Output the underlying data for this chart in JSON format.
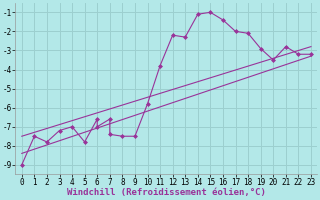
{
  "background_color": "#b3e8e8",
  "grid_color": "#9ccfcf",
  "line_color": "#993399",
  "marker_color": "#993399",
  "xlabel": "Windchill (Refroidissement éolien,°C)",
  "xlim": [
    -0.5,
    23.5
  ],
  "ylim": [
    -9.5,
    -0.5
  ],
  "yticks": [
    -9,
    -8,
    -7,
    -6,
    -5,
    -4,
    -3,
    -2,
    -1
  ],
  "xticks": [
    0,
    1,
    2,
    3,
    4,
    5,
    6,
    7,
    8,
    9,
    10,
    11,
    12,
    13,
    14,
    15,
    16,
    17,
    18,
    19,
    20,
    21,
    22,
    23
  ],
  "line1_x": [
    0,
    1,
    2,
    3,
    4,
    5,
    6,
    6,
    7,
    7,
    8,
    9,
    10,
    11,
    12,
    13,
    14,
    15,
    16,
    17,
    18,
    19,
    20,
    21,
    22,
    23
  ],
  "line1_y": [
    -9.0,
    -7.5,
    -7.8,
    -7.2,
    -7.0,
    -7.8,
    -6.6,
    -7.0,
    -6.6,
    -7.4,
    -7.5,
    -7.5,
    -5.8,
    -3.8,
    -2.2,
    -2.3,
    -1.1,
    -1.0,
    -1.4,
    -2.0,
    -2.1,
    -2.9,
    -3.5,
    -2.8,
    -3.2,
    -3.2
  ],
  "line2_x": [
    0,
    23
  ],
  "line2_y": [
    -7.5,
    -2.8
  ],
  "line3_x": [
    0,
    23
  ],
  "line3_y": [
    -8.4,
    -3.3
  ],
  "xlabel_fontsize": 6.5,
  "tick_fontsize": 5.5,
  "ylabel_fontsize": 6
}
